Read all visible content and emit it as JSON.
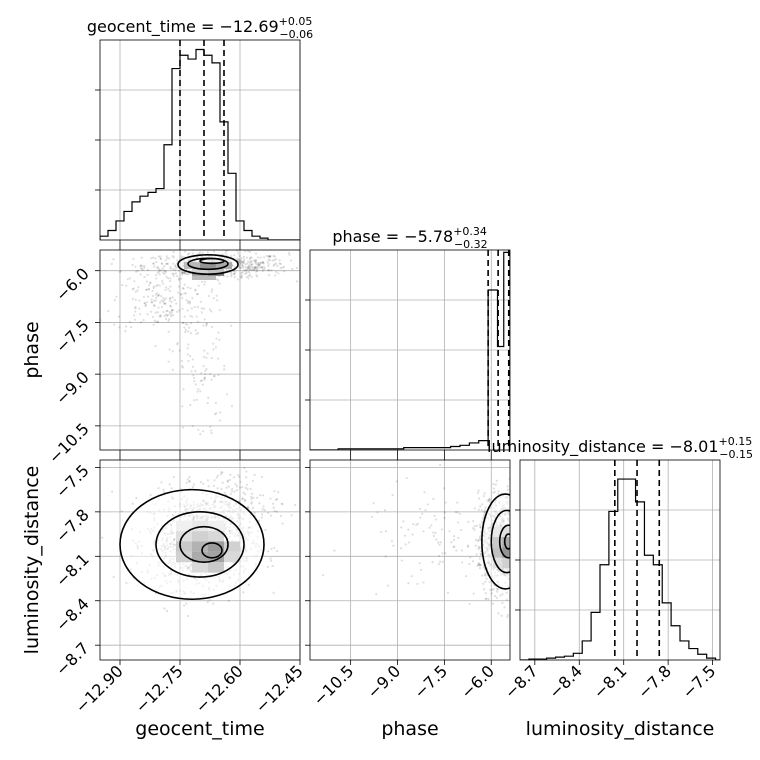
{
  "chart_data": {
    "type": "corner",
    "parameters": [
      {
        "name": "geocent_time",
        "axis_label": "geocent_time",
        "title_prefix": "geocent_time = ",
        "median": "−12.69",
        "upper": "+0.05",
        "lower": "−0.06",
        "range": [
          -12.95,
          -12.45
        ],
        "ticks": [
          -12.9,
          -12.75,
          -12.6,
          -12.45
        ],
        "tick_labels": [
          "−12.90",
          "−12.75",
          "−12.60",
          "−12.45"
        ],
        "quantiles": [
          -12.75,
          -12.69,
          -12.64
        ],
        "hist": {
          "edges": [
            -12.95,
            -12.93,
            -12.91,
            -12.89,
            -12.87,
            -12.85,
            -12.83,
            -12.81,
            -12.79,
            -12.77,
            -12.75,
            -12.73,
            -12.71,
            -12.69,
            -12.67,
            -12.65,
            -12.63,
            -12.61,
            -12.59,
            -12.57,
            -12.55,
            -12.53,
            -12.51,
            -12.49,
            -12.47,
            -12.45
          ],
          "counts": [
            0.02,
            0.05,
            0.1,
            0.15,
            0.2,
            0.23,
            0.25,
            0.27,
            0.5,
            0.9,
            0.97,
            0.95,
            1.0,
            0.97,
            0.93,
            0.62,
            0.35,
            0.1,
            0.05,
            0.02,
            0.01,
            0.0,
            0.0,
            0.0,
            0.0
          ],
          "ymax": 1.05
        }
      },
      {
        "name": "phase",
        "axis_label": "phase",
        "title_prefix": "phase = ",
        "median": "−5.78",
        "upper": "+0.34",
        "lower": "−0.32",
        "range": [
          -11.8,
          -5.4
        ],
        "ticks": [
          -10.5,
          -9.0,
          -7.5,
          -6.0
        ],
        "tick_labels": [
          "−10.5",
          "−9.0",
          "−7.5",
          "−6.0"
        ],
        "quantiles": [
          -6.1,
          -5.78,
          -5.44
        ],
        "hist": {
          "edges": [
            -11.8,
            -11.5,
            -11.2,
            -10.9,
            -10.6,
            -10.3,
            -10.0,
            -9.7,
            -9.4,
            -9.1,
            -8.8,
            -8.5,
            -8.2,
            -7.9,
            -7.6,
            -7.3,
            -7.0,
            -6.7,
            -6.4,
            -6.1,
            -5.8,
            -5.6,
            -5.4
          ],
          "counts": [
            0.0,
            0.0,
            0.0,
            0.005,
            0.005,
            0.005,
            0.005,
            0.005,
            0.005,
            0.005,
            0.01,
            0.01,
            0.01,
            0.01,
            0.01,
            0.015,
            0.02,
            0.03,
            0.04,
            0.68,
            0.44,
            0.84
          ],
          "ymax": 0.85
        }
      },
      {
        "name": "luminosity_distance",
        "axis_label": "luminosity_distance",
        "title_prefix": "luminosity_distance = ",
        "median": "−8.01",
        "upper": "+0.15",
        "lower": "−0.15",
        "range": [
          -8.8,
          -7.45
        ],
        "ticks": [
          -8.7,
          -8.4,
          -8.1,
          -7.8,
          -7.5
        ],
        "tick_labels": [
          "−8.7",
          "−8.4",
          "−8.1",
          "−7.8",
          "−7.5"
        ],
        "quantiles": [
          -8.16,
          -8.01,
          -7.86
        ],
        "hist": {
          "edges": [
            -8.8,
            -8.74,
            -8.68,
            -8.62,
            -8.56,
            -8.5,
            -8.44,
            -8.38,
            -8.32,
            -8.26,
            -8.2,
            -8.14,
            -8.08,
            -8.02,
            -7.96,
            -7.9,
            -7.84,
            -7.78,
            -7.72,
            -7.66,
            -7.6,
            -7.54,
            -7.48,
            -7.45
          ],
          "counts": [
            0.0,
            0.005,
            0.005,
            0.01,
            0.015,
            0.02,
            0.035,
            0.1,
            0.25,
            0.5,
            0.78,
            0.95,
            0.95,
            0.83,
            0.55,
            0.5,
            0.3,
            0.18,
            0.1,
            0.06,
            0.03,
            0.01,
            0.0
          ],
          "ymax": 1.05
        }
      }
    ],
    "pairs": [
      {
        "x_param": 0,
        "y_param": 1,
        "ylim": [
          -11.2,
          -5.4
        ],
        "y_ticks": [
          -10.5,
          -9.0,
          -7.5,
          -6.0
        ],
        "y_tick_labels": [
          "−10.5",
          "−9.0",
          "−7.5",
          "−6.0"
        ],
        "samples": {
          "count": 900,
          "mode_fractions": [
            0.68,
            0.2,
            0.12
          ],
          "modes": [
            {
              "cx": -12.66,
              "cy": -5.85,
              "sx": 0.09,
              "sy": 0.18
            },
            {
              "cx": -12.8,
              "cy": -6.9,
              "sx": 0.06,
              "sy": 0.45
            },
            {
              "cx": -12.7,
              "cy": -8.8,
              "sx": 0.035,
              "sy": 1.2
            }
          ]
        },
        "contours": [
          {
            "cx": -12.68,
            "cy": -5.82,
            "rx": 0.075,
            "ry": 0.28
          },
          {
            "cx": -12.68,
            "cy": -5.8,
            "rx": 0.05,
            "ry": 0.16
          },
          {
            "cx": -12.67,
            "cy": -5.72,
            "rx": 0.03,
            "ry": 0.07
          }
        ],
        "density_cells": [
          {
            "x": -12.7,
            "y": -5.75,
            "w": 0.04,
            "h": 0.2,
            "shade": "#111111"
          },
          {
            "x": -12.74,
            "y": -5.75,
            "w": 0.04,
            "h": 0.2,
            "shade": "#666666"
          },
          {
            "x": -12.66,
            "y": -5.75,
            "w": 0.04,
            "h": 0.2,
            "shade": "#444444"
          },
          {
            "x": -12.72,
            "y": -5.95,
            "w": 0.04,
            "h": 0.2,
            "shade": "#999999"
          },
          {
            "x": -12.68,
            "y": -5.95,
            "w": 0.04,
            "h": 0.2,
            "shade": "#777777"
          },
          {
            "x": -12.72,
            "y": -6.15,
            "w": 0.06,
            "h": 0.12,
            "shade": "#bbbbbb"
          }
        ]
      },
      {
        "x_param": 0,
        "y_param": 2,
        "samples": {
          "count": 1200,
          "mode_fractions": [
            0.85,
            0.15
          ],
          "modes": [
            {
              "cx": -12.7,
              "cy": -8.0,
              "sx": 0.065,
              "sy": 0.16
            },
            {
              "cx": -12.62,
              "cy": -7.75,
              "sx": 0.06,
              "sy": 0.12
            }
          ]
        },
        "contours": [
          {
            "cx": -12.72,
            "cy": -8.02,
            "rx": 0.18,
            "ry": 0.37
          },
          {
            "cx": -12.7,
            "cy": -8.02,
            "rx": 0.11,
            "ry": 0.22
          },
          {
            "cx": -12.69,
            "cy": -8.02,
            "rx": 0.06,
            "ry": 0.12
          },
          {
            "cx": -12.67,
            "cy": -8.06,
            "rx": 0.025,
            "ry": 0.05
          }
        ],
        "density_cells": [
          {
            "x": -12.76,
            "y": -7.86,
            "w": 0.04,
            "h": 0.07,
            "shade": "#dddddd"
          },
          {
            "x": -12.72,
            "y": -7.86,
            "w": 0.04,
            "h": 0.07,
            "shade": "#cccccc"
          },
          {
            "x": -12.68,
            "y": -7.86,
            "w": 0.04,
            "h": 0.07,
            "shade": "#dddddd"
          },
          {
            "x": -12.76,
            "y": -7.93,
            "w": 0.04,
            "h": 0.07,
            "shade": "#bbbbbb"
          },
          {
            "x": -12.72,
            "y": -7.93,
            "w": 0.04,
            "h": 0.07,
            "shade": "#999999"
          },
          {
            "x": -12.68,
            "y": -7.93,
            "w": 0.04,
            "h": 0.07,
            "shade": "#aaaaaa"
          },
          {
            "x": -12.76,
            "y": -8.0,
            "w": 0.04,
            "h": 0.07,
            "shade": "#888888"
          },
          {
            "x": -12.72,
            "y": -8.0,
            "w": 0.04,
            "h": 0.07,
            "shade": "#555555"
          },
          {
            "x": -12.68,
            "y": -8.0,
            "w": 0.04,
            "h": 0.07,
            "shade": "#222222"
          },
          {
            "x": -12.64,
            "y": -8.0,
            "w": 0.04,
            "h": 0.07,
            "shade": "#999999"
          },
          {
            "x": -12.76,
            "y": -8.07,
            "w": 0.04,
            "h": 0.07,
            "shade": "#999999"
          },
          {
            "x": -12.72,
            "y": -8.07,
            "w": 0.04,
            "h": 0.07,
            "shade": "#444444"
          },
          {
            "x": -12.68,
            "y": -8.07,
            "w": 0.04,
            "h": 0.07,
            "shade": "#333333"
          },
          {
            "x": -12.64,
            "y": -8.07,
            "w": 0.04,
            "h": 0.07,
            "shade": "#aaaaaa"
          },
          {
            "x": -12.72,
            "y": -8.14,
            "w": 0.04,
            "h": 0.07,
            "shade": "#aaaaaa"
          },
          {
            "x": -12.68,
            "y": -8.14,
            "w": 0.04,
            "h": 0.07,
            "shade": "#888888"
          }
        ]
      },
      {
        "x_param": 1,
        "y_param": 2,
        "samples": {
          "count": 900,
          "mode_fractions": [
            0.82,
            0.18
          ],
          "modes": [
            {
              "cx": -5.7,
              "cy": -8.01,
              "sx": 0.35,
              "sy": 0.16
            },
            {
              "cx": -7.0,
              "cy": -8.0,
              "sx": 1.6,
              "sy": 0.2
            }
          ]
        },
        "contours": [
          {
            "cx": -5.55,
            "cy": -8.0,
            "rx": 0.75,
            "ry": 0.32
          },
          {
            "cx": -5.5,
            "cy": -8.0,
            "rx": 0.5,
            "ry": 0.21
          },
          {
            "cx": -5.45,
            "cy": -8.0,
            "rx": 0.28,
            "ry": 0.11
          },
          {
            "cx": -5.45,
            "cy": -8.0,
            "rx": 0.12,
            "ry": 0.05
          }
        ],
        "density_cells": [
          {
            "x": -5.95,
            "y": -7.9,
            "w": 0.3,
            "h": 0.07,
            "shade": "#cccccc"
          },
          {
            "x": -5.65,
            "y": -7.9,
            "w": 0.3,
            "h": 0.07,
            "shade": "#bbbbbb"
          },
          {
            "x": -5.95,
            "y": -7.97,
            "w": 0.3,
            "h": 0.07,
            "shade": "#888888"
          },
          {
            "x": -5.65,
            "y": -7.97,
            "w": 0.3,
            "h": 0.07,
            "shade": "#444444"
          },
          {
            "x": -5.95,
            "y": -8.04,
            "w": 0.3,
            "h": 0.07,
            "shade": "#777777"
          },
          {
            "x": -5.65,
            "y": -8.04,
            "w": 0.3,
            "h": 0.07,
            "shade": "#111111"
          },
          {
            "x": -5.95,
            "y": -8.11,
            "w": 0.3,
            "h": 0.07,
            "shade": "#bbbbbb"
          },
          {
            "x": -5.65,
            "y": -8.11,
            "w": 0.3,
            "h": 0.07,
            "shade": "#999999"
          }
        ]
      }
    ],
    "grid": true
  }
}
